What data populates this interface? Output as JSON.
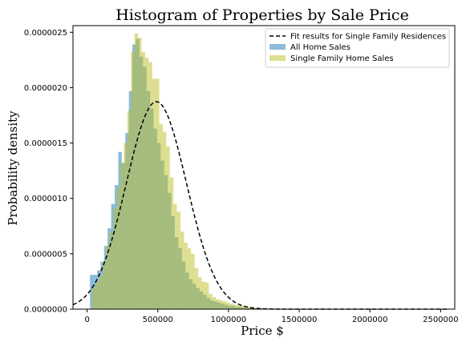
{
  "chart_data": {
    "type": "bar",
    "title": "Histogram of Properties by Sale Price",
    "xlabel": "Price $",
    "ylabel": "Probability density",
    "xlim": [
      -100000,
      2600000
    ],
    "ylim": [
      0,
      2.56e-06
    ],
    "xticks": [
      0,
      500000,
      1000000,
      1500000,
      2000000,
      2500000
    ],
    "yticks": [
      0.0,
      5e-07,
      1e-06,
      1.5e-06,
      2e-06,
      2.5e-06
    ],
    "xtick_labels": [
      "0",
      "500000",
      "1000000",
      "1500000",
      "2000000",
      "2500000"
    ],
    "ytick_labels": [
      "0.0000000",
      "0.0000005",
      "0.0000010",
      "0.0000015",
      "0.0000020",
      "0.0000025"
    ],
    "legend_position": "top-right",
    "grid": false,
    "series": [
      {
        "name": "All Home Sales",
        "color": "#1f77b4",
        "opacity": 0.5,
        "bin_edges": [
          20000,
          45000,
          70000,
          95000,
          120000,
          145000,
          170000,
          195000,
          220000,
          245000,
          270000,
          295000,
          320000,
          345000,
          370000,
          395000,
          420000,
          445000,
          470000,
          495000,
          520000,
          545000,
          570000,
          595000,
          620000,
          645000,
          670000,
          695000,
          720000,
          745000,
          770000,
          795000,
          820000,
          845000,
          870000,
          895000,
          920000,
          945000,
          970000,
          995000,
          1020000,
          1045000,
          1070000,
          1095000,
          1120000,
          1145000,
          1170000,
          1195000,
          1220000,
          1245000,
          1270000,
          1295000,
          1320000,
          1345000,
          1370000,
          1395000,
          1420000,
          1445000,
          1470000,
          1495000,
          1520000,
          1545000,
          1570000,
          1595000,
          1620000,
          1645000,
          1670000,
          1695000,
          1720000,
          1745000,
          1770000,
          1795000,
          1820000,
          1845000,
          1870000,
          1895000,
          1920000,
          1945000,
          1970000,
          1995000,
          2020000,
          2045000,
          2070000,
          2095000,
          2120000,
          2145000,
          2170000,
          2195000,
          2220000,
          2245000,
          2270000,
          2295000,
          2320000,
          2345000,
          2370000,
          2395000,
          2420000,
          2445000,
          2470000,
          2495000,
          2520000,
          2545000
        ],
        "values": [
          3.1e-07,
          3.1e-07,
          3.5e-07,
          4.3e-07,
          5.7e-07,
          7.3e-07,
          9.5e-07,
          1.12e-06,
          1.42e-06,
          1.32e-06,
          1.59e-06,
          1.97e-06,
          2.39e-06,
          2.44e-06,
          2.28e-06,
          2.19e-06,
          1.97e-06,
          1.81e-06,
          1.63e-06,
          1.5e-06,
          1.34e-06,
          1.21e-06,
          1.05e-06,
          8.4e-07,
          6.5e-07,
          5.5e-07,
          4.3e-07,
          3.3e-07,
          2.7e-07,
          2.3e-07,
          1.9e-07,
          1.6e-07,
          1.3e-07,
          1e-07,
          8e-08,
          7e-08,
          6e-08,
          5e-08,
          4e-08,
          3e-08,
          3e-08,
          2e-08,
          2e-08,
          1.5e-08,
          1.2e-08,
          1e-08,
          8e-09,
          7e-09,
          6e-09,
          5e-09,
          4e-09,
          4e-09,
          3e-09,
          3e-09,
          3e-09,
          2e-09,
          2e-09,
          2e-09,
          2e-09,
          2e-09,
          2e-09,
          2e-09,
          2e-09,
          2e-09,
          2e-09,
          2e-09,
          2e-09,
          2e-09,
          2e-09,
          2e-09,
          2e-09,
          2e-09,
          2e-09,
          2e-09,
          2e-09,
          2e-09,
          2e-09,
          2e-09,
          2e-09,
          2e-09,
          2e-09,
          2e-09,
          2e-09,
          2e-09,
          2e-09,
          2e-09,
          2e-09,
          2e-09,
          2e-09,
          2e-09,
          2e-09,
          2e-09,
          2e-09,
          2e-09,
          2e-09,
          2e-09,
          2e-09,
          2e-09,
          2e-09,
          2e-09,
          2e-09
        ]
      },
      {
        "name": "Single Family Home Sales",
        "color": "#bcbd22",
        "opacity": 0.5,
        "bin_edges": [
          35000,
          60000,
          85000,
          110000,
          135000,
          160000,
          185000,
          210000,
          235000,
          260000,
          285000,
          310000,
          335000,
          360000,
          385000,
          410000,
          435000,
          460000,
          485000,
          510000,
          535000,
          560000,
          585000,
          610000,
          635000,
          660000,
          685000,
          710000,
          735000,
          760000,
          785000,
          810000,
          835000,
          860000,
          885000,
          910000,
          935000,
          960000,
          985000,
          1010000,
          1035000,
          1060000,
          1085000,
          1110000,
          1135000,
          1160000,
          1185000,
          1210000,
          1235000,
          1260000,
          1285000,
          1310000,
          1335000,
          1360000,
          1385000,
          1410000,
          1435000,
          1460000,
          1485000,
          1510000,
          1535000,
          1560000,
          1585000,
          1610000,
          1635000,
          1660000,
          1685000,
          1710000,
          1735000,
          1760000,
          1785000,
          1810000,
          1835000,
          1860000,
          1885000,
          1910000,
          1935000,
          1960000,
          1985000,
          2010000,
          2035000,
          2060000,
          2085000,
          2110000,
          2135000,
          2160000,
          2185000,
          2210000,
          2235000,
          2260000,
          2285000,
          2310000,
          2335000,
          2360000,
          2385000,
          2410000,
          2435000,
          2460000,
          2485000,
          2510000,
          2535000,
          2560000
        ],
        "values": [
          2e-07,
          2.5e-07,
          3e-07,
          4.3e-07,
          5.8e-07,
          7e-07,
          9.1e-07,
          1.1e-06,
          1.32e-06,
          1.5e-06,
          1.79e-06,
          2.32e-06,
          2.49e-06,
          2.45e-06,
          2.32e-06,
          2.27e-06,
          2.23e-06,
          2.08e-06,
          2.08e-06,
          1.67e-06,
          1.6e-06,
          1.47e-06,
          1.19e-06,
          9.5e-07,
          8.8e-07,
          7e-07,
          6e-07,
          5.5e-07,
          5e-07,
          3.7e-07,
          2.9e-07,
          2.5e-07,
          2.4e-07,
          1.4e-07,
          1.1e-07,
          9e-08,
          8e-08,
          7e-08,
          6e-08,
          5e-08,
          4e-08,
          3.5e-08,
          3e-08,
          2.5e-08,
          2e-08,
          1.5e-08,
          1.2e-08,
          1e-08,
          8e-09,
          7e-09,
          6e-09,
          5e-09,
          5e-09,
          4e-09,
          4e-09,
          3e-09,
          3e-09,
          3e-09,
          3e-09,
          2e-09,
          2e-09,
          2e-09,
          2e-09,
          2e-09,
          2e-09,
          2e-09,
          2e-09,
          2e-09,
          2e-09,
          2e-09,
          2e-09,
          2e-09,
          2e-09,
          2e-09,
          2e-09,
          2e-09,
          2e-09,
          2e-09,
          2e-09,
          2e-09,
          2e-09,
          2e-09,
          2e-09,
          2e-09,
          2e-09,
          2e-09,
          2e-09,
          2e-09,
          2e-09,
          2e-09,
          2e-09,
          2e-09,
          2e-09,
          2e-09,
          2e-09,
          2e-09,
          2e-09,
          2e-09,
          2e-09,
          2e-09,
          2e-09
        ]
      }
    ],
    "fit": {
      "name": "Fit results for Single Family Residences",
      "style": "dashed",
      "color": "#000000",
      "distribution": "normal",
      "mu": 490000,
      "sigma": 213000,
      "x_range": [
        -100000,
        2550000
      ]
    }
  }
}
